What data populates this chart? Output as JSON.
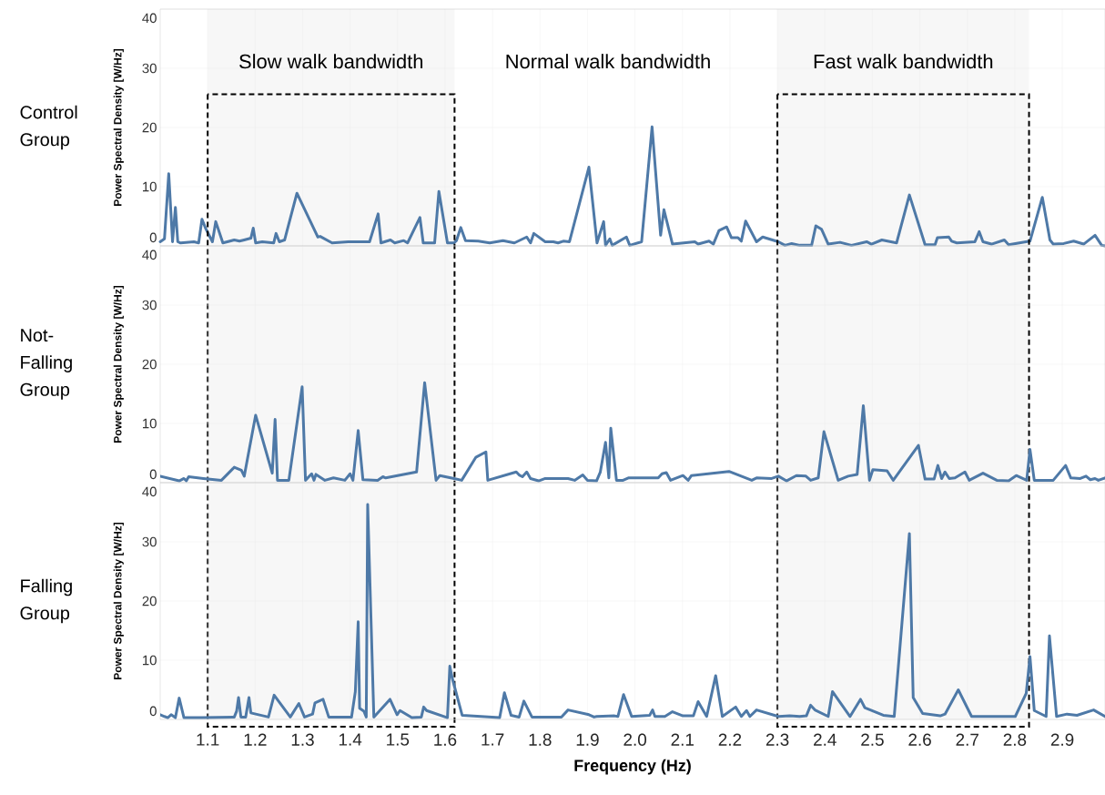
{
  "chart_data": [
    {
      "type": "line",
      "title": "Control Group",
      "ylabel": "Power Spectral Density [W/Hz]",
      "xlim": [
        1.0,
        2.99
      ],
      "ylim": [
        0,
        40
      ],
      "xticks": [
        1.1,
        1.2,
        1.3,
        1.4,
        1.5,
        1.6,
        1.7,
        1.8,
        1.9,
        2.0,
        2.1,
        2.2,
        2.3,
        2.4,
        2.5,
        2.6,
        2.7,
        2.8,
        2.9
      ],
      "yticks": [
        0,
        10,
        20,
        30,
        40
      ],
      "grid": true,
      "tick_labels": "y",
      "color": "#4e79a7",
      "x": [
        1.0,
        1.009,
        1.018,
        1.026,
        1.032,
        1.037,
        1.043,
        1.071,
        1.081,
        1.088,
        1.096,
        1.11,
        1.117,
        1.132,
        1.156,
        1.167,
        1.177,
        1.191,
        1.196,
        1.201,
        1.215,
        1.239,
        1.244,
        1.251,
        1.262,
        1.288,
        1.332,
        1.337,
        1.362,
        1.396,
        1.441,
        1.459,
        1.465,
        1.485,
        1.494,
        1.513,
        1.521,
        1.547,
        1.554,
        1.578,
        1.587,
        1.605,
        1.619,
        1.624,
        1.633,
        1.643,
        1.67,
        1.694,
        1.722,
        1.746,
        1.772,
        1.78,
        1.787,
        1.811,
        1.828,
        1.838,
        1.849,
        1.862,
        1.903,
        1.92,
        1.934,
        1.938,
        1.947,
        1.952,
        1.982,
        1.989,
        2.014,
        2.036,
        2.054,
        2.061,
        2.079,
        2.126,
        2.133,
        2.156,
        2.165,
        2.177,
        2.193,
        2.203,
        2.217,
        2.224,
        2.233,
        2.256,
        2.269,
        2.302,
        2.316,
        2.33,
        2.347,
        2.372,
        2.381,
        2.393,
        2.407,
        2.432,
        2.456,
        2.488,
        2.498,
        2.52,
        2.551,
        2.578,
        2.611,
        2.632,
        2.637,
        2.661,
        2.667,
        2.678,
        2.716,
        2.725,
        2.733,
        2.751,
        2.778,
        2.787,
        2.832,
        2.858,
        2.874,
        2.881,
        2.903,
        2.924,
        2.945,
        2.969,
        2.983,
        2.99
      ],
      "values": [
        0.7,
        1.2,
        12.2,
        0.7,
        6.5,
        0.7,
        0.5,
        0.7,
        0.5,
        4.5,
        2.9,
        0.7,
        4.1,
        0.5,
        1.0,
        0.8,
        1.0,
        1.3,
        3.0,
        0.5,
        0.7,
        0.5,
        2.1,
        0.7,
        1.0,
        8.9,
        1.5,
        1.6,
        0.5,
        0.7,
        0.7,
        5.4,
        0.5,
        1.0,
        0.5,
        0.9,
        0.5,
        4.8,
        0.5,
        0.5,
        9.2,
        0.5,
        0.5,
        0.9,
        3.1,
        0.9,
        0.8,
        0.5,
        0.9,
        0.5,
        1.5,
        0.5,
        2.1,
        0.7,
        0.7,
        0.5,
        0.8,
        0.7,
        13.3,
        0.5,
        4.1,
        0.1,
        1.2,
        0.1,
        1.5,
        0.1,
        0.7,
        20.1,
        1.8,
        6.1,
        0.3,
        0.7,
        0.3,
        0.8,
        0.3,
        2.6,
        3.2,
        1.4,
        1.4,
        0.8,
        4.2,
        0.7,
        1.5,
        0.7,
        0.1,
        0.4,
        0.1,
        0.1,
        3.4,
        2.8,
        0.3,
        0.6,
        0.1,
        0.7,
        0.3,
        1.0,
        0.5,
        8.6,
        0.2,
        0.2,
        1.4,
        1.5,
        0.8,
        0.5,
        0.7,
        2.4,
        0.7,
        0.3,
        1.0,
        0.2,
        0.8,
        8.2,
        1.0,
        0.3,
        0.4,
        0.8,
        0.3,
        1.8,
        0.1,
        0.0
      ],
      "bands": [
        {
          "axis": "x",
          "from": 1.1,
          "to": 1.62,
          "label": "Slow walk bandwidth",
          "color": "#f7f7f7"
        },
        {
          "axis": "x",
          "from": 2.3,
          "to": 2.83,
          "label": "Fast walk bandwidth",
          "color": "#f7f7f7"
        }
      ],
      "annotations": [
        "Normal walk bandwidth"
      ]
    },
    {
      "type": "line",
      "title": "Not-Falling Group",
      "ylabel": "Power Spectral Density [W/Hz]",
      "xlim": [
        1.0,
        2.99
      ],
      "ylim": [
        0,
        40
      ],
      "xticks": [
        1.1,
        1.2,
        1.3,
        1.4,
        1.5,
        1.6,
        1.7,
        1.8,
        1.9,
        2.0,
        2.1,
        2.2,
        2.3,
        2.4,
        2.5,
        2.6,
        2.7,
        2.8,
        2.9
      ],
      "yticks": [
        0,
        10,
        20,
        30,
        40
      ],
      "grid": true,
      "tick_labels": "y",
      "color": "#4e79a7",
      "x": [
        1.0,
        1.04,
        1.05,
        1.055,
        1.06,
        1.091,
        1.129,
        1.156,
        1.171,
        1.177,
        1.201,
        1.236,
        1.242,
        1.247,
        1.271,
        1.299,
        1.306,
        1.319,
        1.324,
        1.328,
        1.347,
        1.365,
        1.389,
        1.4,
        1.406,
        1.417,
        1.427,
        1.458,
        1.469,
        1.475,
        1.54,
        1.557,
        1.581,
        1.589,
        1.619,
        1.635,
        1.665,
        1.686,
        1.69,
        1.75,
        1.756,
        1.763,
        1.772,
        1.78,
        1.797,
        1.811,
        1.859,
        1.873,
        1.89,
        1.9,
        1.919,
        1.927,
        1.938,
        1.945,
        1.949,
        1.961,
        1.975,
        1.986,
        2.049,
        2.057,
        2.066,
        2.075,
        2.101,
        2.112,
        2.119,
        2.198,
        2.246,
        2.256,
        2.288,
        2.302,
        2.319,
        2.34,
        2.36,
        2.37,
        2.386,
        2.398,
        2.428,
        2.449,
        2.468,
        2.481,
        2.494,
        2.501,
        2.531,
        2.544,
        2.597,
        2.611,
        2.63,
        2.638,
        2.646,
        2.653,
        2.662,
        2.674,
        2.695,
        2.704,
        2.733,
        2.762,
        2.787,
        2.803,
        2.825,
        2.832,
        2.841,
        2.881,
        2.907,
        2.918,
        2.938,
        2.95,
        2.959,
        2.969,
        2.976,
        2.99
      ],
      "values": [
        1.1,
        0.3,
        0.7,
        0.3,
        1.0,
        0.7,
        0.4,
        2.6,
        2.1,
        1.1,
        11.4,
        1.6,
        10.7,
        0.4,
        0.4,
        16.2,
        0.4,
        1.5,
        0.4,
        1.4,
        0.4,
        0.8,
        0.4,
        1.5,
        0.4,
        8.8,
        0.5,
        0.4,
        1.0,
        0.8,
        1.8,
        16.9,
        0.4,
        1.2,
        0.7,
        0.4,
        4.3,
        5.2,
        0.4,
        1.8,
        1.3,
        1.0,
        1.8,
        0.7,
        0.3,
        0.7,
        0.7,
        0.4,
        1.3,
        0.4,
        0.3,
        1.8,
        6.8,
        0.8,
        9.2,
        0.4,
        0.4,
        0.8,
        0.8,
        1.5,
        1.7,
        0.4,
        1.2,
        0.4,
        1.2,
        1.9,
        0.4,
        0.8,
        0.7,
        1.1,
        0.3,
        1.2,
        1.1,
        0.4,
        0.8,
        8.6,
        0.4,
        1.1,
        1.4,
        13.0,
        0.4,
        2.2,
        2.0,
        0.4,
        6.3,
        0.6,
        0.6,
        2.9,
        0.7,
        1.8,
        0.7,
        0.8,
        1.8,
        0.4,
        1.6,
        0.4,
        0.3,
        1.2,
        0.4,
        5.6,
        0.4,
        0.4,
        2.9,
        0.8,
        0.7,
        1.1,
        0.5,
        0.7,
        0.4,
        0.8
      ]
    },
    {
      "type": "line",
      "title": "Falling Group",
      "ylabel": "Power Spectral Density [W/Hz]",
      "xlabel": "Frequency (Hz)",
      "xlim": [
        1.0,
        2.99
      ],
      "ylim": [
        0,
        40
      ],
      "xticks": [
        1.1,
        1.2,
        1.3,
        1.4,
        1.5,
        1.6,
        1.7,
        1.8,
        1.9,
        {
          "value": 2.0,
          "label": "2.0"
        },
        2.1,
        2.2,
        2.3,
        2.4,
        2.5,
        2.6,
        2.7,
        2.8,
        2.9
      ],
      "yticks": [
        0,
        10,
        20,
        30,
        40
      ],
      "grid": true,
      "color": "#4e79a7",
      "x": [
        1.0,
        1.009,
        1.016,
        1.023,
        1.032,
        1.04,
        1.05,
        1.088,
        1.156,
        1.161,
        1.165,
        1.17,
        1.18,
        1.187,
        1.191,
        1.228,
        1.24,
        1.274,
        1.292,
        1.304,
        1.321,
        1.326,
        1.343,
        1.355,
        1.403,
        1.411,
        1.417,
        1.42,
        1.429,
        1.434,
        1.437,
        1.45,
        1.484,
        1.499,
        1.505,
        1.53,
        1.55,
        1.555,
        1.561,
        1.605,
        1.61,
        1.615,
        1.636,
        1.715,
        1.725,
        1.739,
        1.756,
        1.766,
        1.783,
        1.845,
        1.859,
        1.903,
        1.914,
        1.919,
        1.957,
        1.964,
        1.976,
        1.993,
        2.031,
        2.037,
        2.042,
        2.063,
        2.079,
        2.101,
        2.123,
        2.133,
        2.151,
        2.17,
        2.184,
        2.212,
        2.224,
        2.235,
        2.242,
        2.256,
        2.302,
        2.326,
        2.347,
        2.361,
        2.37,
        2.379,
        2.407,
        2.416,
        2.453,
        2.475,
        2.484,
        2.523,
        2.546,
        2.578,
        2.586,
        2.606,
        2.643,
        2.653,
        2.681,
        2.709,
        2.755,
        2.801,
        2.824,
        2.832,
        2.841,
        2.866,
        2.873,
        2.888,
        2.91,
        2.931,
        2.966,
        2.99
      ],
      "values": [
        0.8,
        0.5,
        0.3,
        0.8,
        0.3,
        3.6,
        0.3,
        0.3,
        0.4,
        1.4,
        3.7,
        0.4,
        0.4,
        3.7,
        1.1,
        0.4,
        4.1,
        0.4,
        2.7,
        0.4,
        0.9,
        2.8,
        3.4,
        0.4,
        0.4,
        4.7,
        16.5,
        1.9,
        1.4,
        0.4,
        36.3,
        0.4,
        3.4,
        0.8,
        1.5,
        0.3,
        0.4,
        2.1,
        1.5,
        0.3,
        9.0,
        7.0,
        0.7,
        0.3,
        4.5,
        0.7,
        0.4,
        3.1,
        0.4,
        0.4,
        1.6,
        0.8,
        0.4,
        0.5,
        0.6,
        0.5,
        4.2,
        0.5,
        0.7,
        1.6,
        0.5,
        0.5,
        1.3,
        0.6,
        0.6,
        3.0,
        0.5,
        7.4,
        0.5,
        2.1,
        0.5,
        1.5,
        0.5,
        1.6,
        0.5,
        0.6,
        0.5,
        0.6,
        2.4,
        1.6,
        0.5,
        4.7,
        0.5,
        3.4,
        2.0,
        0.7,
        0.5,
        31.4,
        3.7,
        1.0,
        0.6,
        0.9,
        5.0,
        0.5,
        0.5,
        0.5,
        4.4,
        10.6,
        1.5,
        0.5,
        14.1,
        0.5,
        0.9,
        0.7,
        1.6,
        0.5
      ]
    }
  ]
}
